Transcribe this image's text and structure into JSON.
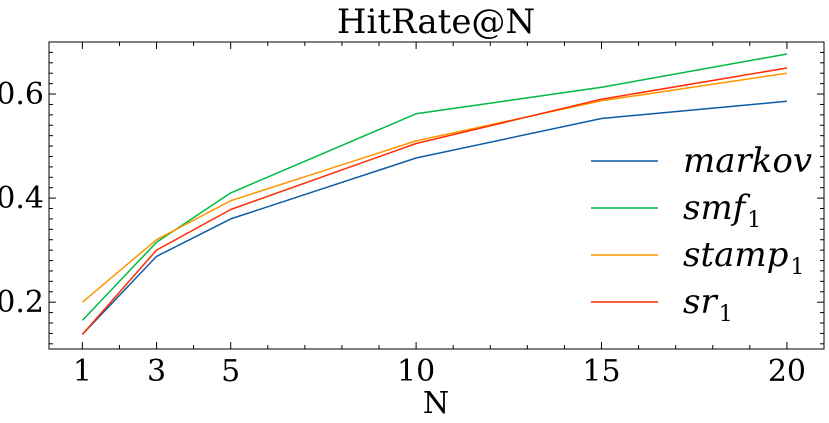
{
  "chart_data": {
    "type": "line",
    "title": "HitRate@N",
    "xlabel": "N",
    "ylabel": "",
    "x": [
      1,
      3,
      5,
      10,
      15,
      20
    ],
    "xticks": [
      "1",
      "3",
      "5",
      "10",
      "15",
      "20"
    ],
    "yticks": [
      0.2,
      0.4,
      0.6
    ],
    "ytick_labels": [
      "0.2",
      "0.4",
      "0.6"
    ],
    "xlim": [
      0.1,
      21
    ],
    "ylim": [
      0.11,
      0.7
    ],
    "grid": false,
    "legend_position": "right",
    "series": [
      {
        "name": "markov",
        "name_base": "markov",
        "name_sub": "",
        "color": "#0C5DA5",
        "values": [
          0.138,
          0.288,
          0.36,
          0.477,
          0.553,
          0.586
        ]
      },
      {
        "name": "smf1",
        "name_base": "smf",
        "name_sub": "1",
        "color": "#00B945",
        "values": [
          0.165,
          0.315,
          0.41,
          0.562,
          0.613,
          0.677
        ]
      },
      {
        "name": "stamp1",
        "name_base": "stamp",
        "name_sub": "1",
        "color": "#FF9500",
        "values": [
          0.2,
          0.32,
          0.395,
          0.51,
          0.587,
          0.64
        ]
      },
      {
        "name": "sr1",
        "name_base": "sr",
        "name_sub": "1",
        "color": "#FF2C00",
        "values": [
          0.138,
          0.3,
          0.378,
          0.505,
          0.59,
          0.65
        ]
      }
    ]
  }
}
